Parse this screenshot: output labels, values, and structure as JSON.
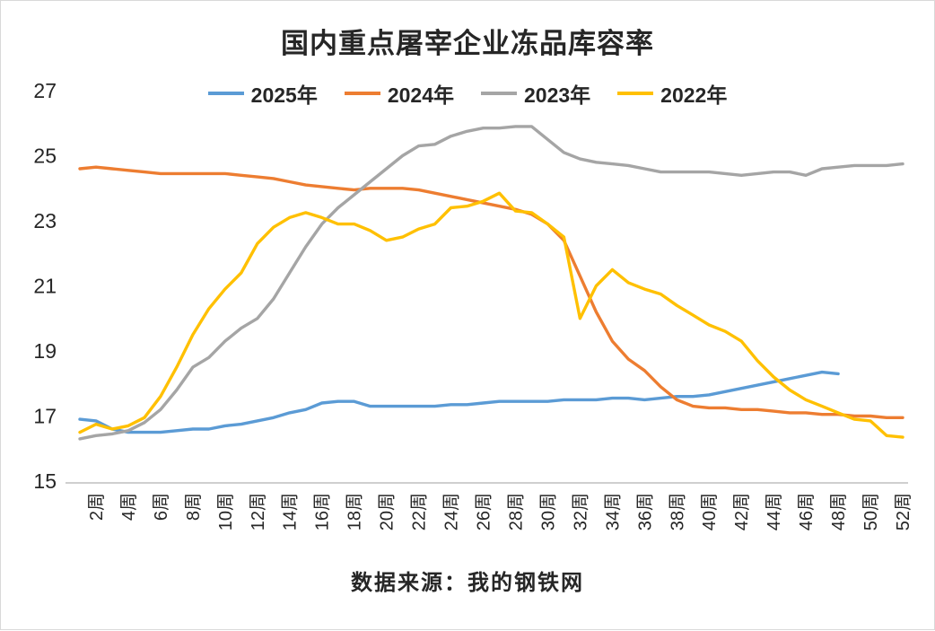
{
  "chart_data": {
    "type": "line",
    "title": "国内重点屠宰企业冻品库容率",
    "source_note": "数据来源：我的钢铁网",
    "ylim": [
      15,
      27
    ],
    "y_ticks": [
      15,
      17,
      19,
      21,
      23,
      25,
      27
    ],
    "x_unit": "week",
    "x_weeks": 52,
    "x_tick_labels": [
      "2周",
      "4周",
      "6周",
      "8周",
      "10周",
      "12周",
      "14周",
      "16周",
      "18周",
      "20周",
      "22周",
      "24周",
      "26周",
      "28周",
      "30周",
      "32周",
      "34周",
      "36周",
      "38周",
      "40周",
      "42周",
      "44周",
      "46周",
      "48周",
      "50周",
      "52周"
    ],
    "grid": false,
    "legend_position": "top",
    "series": [
      {
        "name": "2025年",
        "color": "#5B9BD5",
        "values": [
          16.9,
          16.85,
          16.6,
          16.5,
          16.5,
          16.5,
          16.55,
          16.6,
          16.6,
          16.7,
          16.75,
          16.85,
          16.95,
          17.1,
          17.2,
          17.4,
          17.45,
          17.45,
          17.3,
          17.3,
          17.3,
          17.3,
          17.3,
          17.35,
          17.35,
          17.4,
          17.45,
          17.45,
          17.45,
          17.45,
          17.5,
          17.5,
          17.5,
          17.55,
          17.55,
          17.5,
          17.55,
          17.6,
          17.6,
          17.65,
          17.75,
          17.85,
          17.95,
          18.05,
          18.15,
          18.25,
          18.35,
          18.3,
          null,
          null,
          null,
          null
        ]
      },
      {
        "name": "2024年",
        "color": "#ED7D31",
        "values": [
          24.6,
          24.65,
          24.6,
          24.55,
          24.5,
          24.45,
          24.45,
          24.45,
          24.45,
          24.45,
          24.4,
          24.35,
          24.3,
          24.2,
          24.1,
          24.05,
          24.0,
          23.95,
          24.0,
          24.0,
          24.0,
          23.95,
          23.85,
          23.75,
          23.65,
          23.55,
          23.45,
          23.35,
          23.2,
          22.9,
          22.4,
          21.3,
          20.2,
          19.3,
          18.75,
          18.4,
          17.9,
          17.5,
          17.3,
          17.25,
          17.25,
          17.2,
          17.2,
          17.15,
          17.1,
          17.1,
          17.05,
          17.05,
          17.0,
          17.0,
          16.95,
          16.95
        ]
      },
      {
        "name": "2023年",
        "color": "#A5A5A5",
        "values": [
          16.3,
          16.4,
          16.45,
          16.55,
          16.8,
          17.2,
          17.8,
          18.5,
          18.8,
          19.3,
          19.7,
          20.0,
          20.6,
          21.4,
          22.2,
          22.9,
          23.4,
          23.8,
          24.2,
          24.6,
          25.0,
          25.3,
          25.35,
          25.6,
          25.75,
          25.85,
          25.85,
          25.9,
          25.9,
          25.5,
          25.1,
          24.9,
          24.8,
          24.75,
          24.7,
          24.6,
          24.5,
          24.5,
          24.5,
          24.5,
          24.45,
          24.4,
          24.45,
          24.5,
          24.5,
          24.4,
          24.6,
          24.65,
          24.7,
          24.7,
          24.7,
          24.75
        ]
      },
      {
        "name": "2022年",
        "color": "#FFC000",
        "values": [
          16.5,
          16.75,
          16.6,
          16.7,
          16.95,
          17.6,
          18.5,
          19.5,
          20.3,
          20.9,
          21.4,
          22.3,
          22.8,
          23.1,
          23.25,
          23.1,
          22.9,
          22.9,
          22.7,
          22.4,
          22.5,
          22.75,
          22.9,
          23.4,
          23.45,
          23.6,
          23.85,
          23.3,
          23.25,
          22.9,
          22.5,
          20.0,
          21.0,
          21.5,
          21.1,
          20.9,
          20.75,
          20.4,
          20.1,
          19.8,
          19.6,
          19.3,
          18.7,
          18.2,
          17.8,
          17.5,
          17.3,
          17.1,
          16.9,
          16.85,
          16.4,
          16.35
        ]
      }
    ]
  }
}
